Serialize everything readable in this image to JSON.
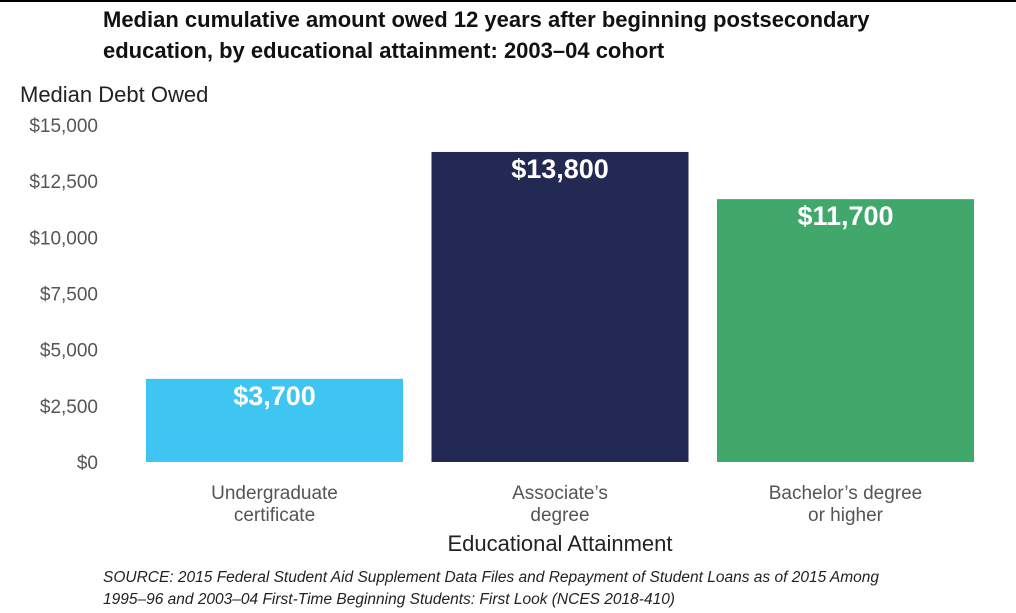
{
  "title_lines": [
    "Median cumulative amount owed 12 years after beginning postsecondary",
    "education, by educational attainment: 2003–04 cohort"
  ],
  "source_lines": [
    "SOURCE: 2015 Federal Student Aid Supplement Data Files and Repayment of Student Loans as of 2015 Among",
    "1995–96 and 2003–04 First-Time Beginning Students: First Look (NCES 2018-410)"
  ],
  "chart_data": {
    "type": "bar",
    "title": "Median cumulative amount owed 12 years after beginning postsecondary education, by educational attainment: 2003–04 cohort",
    "xlabel": "Educational Attainment",
    "ylabel": "Median Debt Owed",
    "ylim": [
      0,
      15000
    ],
    "yticks": [
      0,
      2500,
      5000,
      7500,
      10000,
      12500,
      15000
    ],
    "ytick_labels": [
      "$0",
      "$2,500",
      "$5,000",
      "$7,500",
      "$10,000",
      "$12,500",
      "$15,000"
    ],
    "categories": [
      [
        "Undergraduate",
        "certificate"
      ],
      [
        "Associate’s",
        "degree"
      ],
      [
        "Bachelor’s degree",
        "or higher"
      ]
    ],
    "values": [
      3700,
      13800,
      11700
    ],
    "data_labels": [
      "$3,700",
      "$13,800",
      "$11,700"
    ],
    "colors": [
      "#3ec5f2",
      "#242953",
      "#40a86b"
    ],
    "grid": false,
    "legend": "none"
  }
}
